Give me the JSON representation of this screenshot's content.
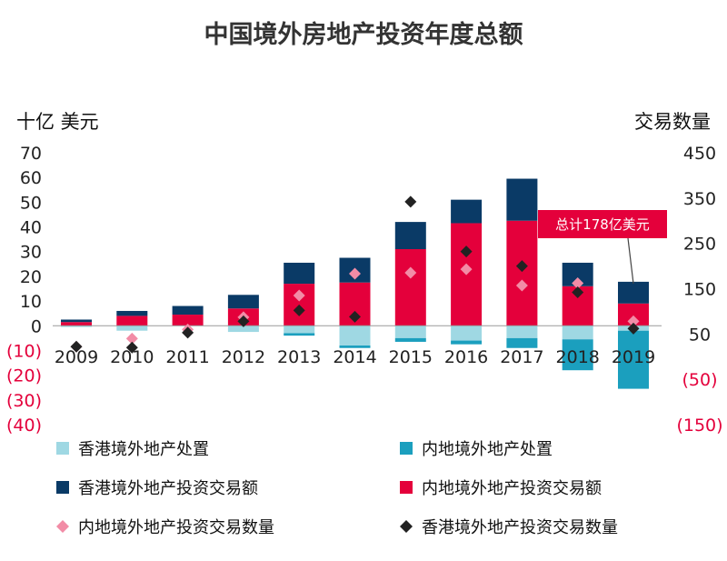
{
  "chart_data": {
    "type": "bar",
    "title": "中国境外房地产投资年度总额",
    "y_left_unit": "十亿 美元",
    "y_right_unit": "交易数量",
    "categories": [
      "2009",
      "2010",
      "2011",
      "2012",
      "2013",
      "2014",
      "2015",
      "2016",
      "2017",
      "2018",
      "2019"
    ],
    "ylim_left": [
      -40,
      70
    ],
    "y_left_ticks": [
      {
        "value": 70,
        "label": "70"
      },
      {
        "value": 60,
        "label": "60"
      },
      {
        "value": 50,
        "label": "50"
      },
      {
        "value": 40,
        "label": "40"
      },
      {
        "value": 30,
        "label": "30"
      },
      {
        "value": 20,
        "label": "20"
      },
      {
        "value": 10,
        "label": "10"
      },
      {
        "value": 0,
        "label": "0"
      },
      {
        "value": -10,
        "label": "(10)"
      },
      {
        "value": -20,
        "label": "(20)"
      },
      {
        "value": -30,
        "label": "(30)"
      },
      {
        "value": -40,
        "label": "(40)"
      }
    ],
    "ylim_right": [
      -150,
      450
    ],
    "y_right_ticks": [
      {
        "value": 450,
        "label": "450"
      },
      {
        "value": 350,
        "label": "350"
      },
      {
        "value": 250,
        "label": "250"
      },
      {
        "value": 150,
        "label": "150"
      },
      {
        "value": 50,
        "label": "50"
      },
      {
        "value": -50,
        "label": "(50)"
      },
      {
        "value": -150,
        "label": "(150)"
      }
    ],
    "series": [
      {
        "name": "内地境外地产投资交易额",
        "kind": "bar",
        "color": "#e4003b",
        "values": [
          1.5,
          4,
          4.5,
          7,
          17,
          17.5,
          31,
          41.5,
          42.5,
          16,
          9
        ]
      },
      {
        "name": "香港境外地产投资交易额",
        "kind": "bar",
        "color": "#0a3a66",
        "values": [
          1,
          2,
          3.5,
          5.5,
          8.5,
          10,
          11,
          9.5,
          17,
          9.5,
          8.8
        ]
      },
      {
        "name": "香港境外地产处置",
        "kind": "bar",
        "color": "#9fd8e3",
        "values": [
          -0.5,
          -2,
          0,
          -2.5,
          -3,
          -8,
          -5,
          -6,
          -5,
          -5.5,
          -2
        ]
      },
      {
        "name": "内地境外地产处置",
        "kind": "bar",
        "color": "#1b9fbe",
        "values": [
          0,
          0,
          0,
          0,
          -1,
          -1,
          -1.5,
          -1.5,
          -4,
          -12.5,
          -23.5
        ]
      },
      {
        "name": "内地境外地产投资交易数量",
        "kind": "marker",
        "axis": "right",
        "color": "#f28ca6",
        "values": [
          22,
          40,
          60,
          87,
          135,
          183,
          185,
          193,
          157,
          162,
          78
        ]
      },
      {
        "name": "香港境外地产投资交易数量",
        "kind": "marker",
        "axis": "right",
        "color": "#222222",
        "values": [
          22,
          20,
          53,
          78,
          102,
          88,
          342,
          232,
          200,
          142,
          62
        ]
      }
    ],
    "annotation": {
      "text": "总计178亿美元",
      "category": "2019",
      "color": "#e4003b"
    },
    "legend": [
      {
        "label": "香港境外地产处置",
        "shape": "square",
        "color": "#9fd8e3"
      },
      {
        "label": "内地境外地产处置",
        "shape": "square",
        "color": "#1b9fbe"
      },
      {
        "label": "香港境外地产投资交易额",
        "shape": "square",
        "color": "#0a3a66"
      },
      {
        "label": "内地境外地产投资交易额",
        "shape": "square",
        "color": "#e4003b"
      },
      {
        "label": "内地境外地产投资交易数量",
        "shape": "diamond",
        "color": "#f28ca6"
      },
      {
        "label": "香港境外地产投资交易数量",
        "shape": "diamond",
        "color": "#222222"
      }
    ],
    "legend_position": "bottom",
    "grid": false
  }
}
